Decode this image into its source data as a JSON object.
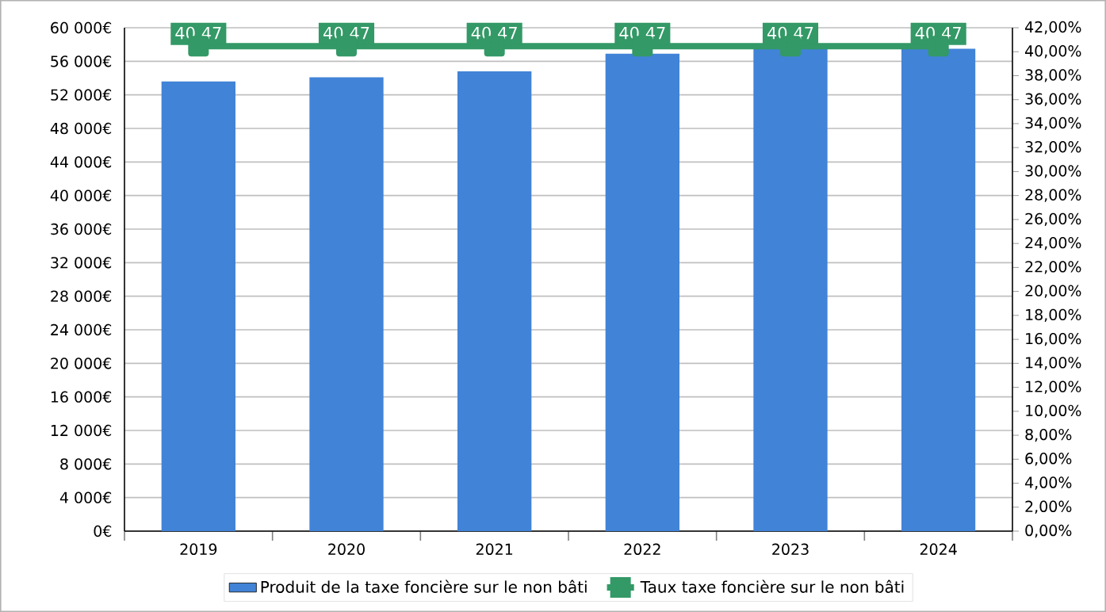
{
  "chart_data": {
    "type": "bar",
    "categories": [
      "2019",
      "2020",
      "2021",
      "2022",
      "2023",
      "2024"
    ],
    "series": [
      {
        "name": "Produit de la taxe foncière sur le non bâti",
        "color": "#4183d7",
        "values": [
          53600,
          54100,
          54800,
          56900,
          57500,
          57500
        ]
      },
      {
        "name": "Taux taxe foncière sur le non bâti",
        "type": "line",
        "axis": "y2",
        "color": "#339966",
        "values": [
          40.47,
          40.47,
          40.47,
          40.47,
          40.47,
          40.47
        ],
        "value_labels": [
          "40,47",
          "40,47",
          "40,47",
          "40,47",
          "40,47",
          "40,47"
        ]
      }
    ],
    "ylim": [
      0,
      60000
    ],
    "yticks": [
      {
        "value": 0,
        "label": "0€"
      },
      {
        "value": 4000,
        "label": "4 000€"
      },
      {
        "value": 8000,
        "label": "8 000€"
      },
      {
        "value": 12000,
        "label": "12 000€"
      },
      {
        "value": 16000,
        "label": "16 000€"
      },
      {
        "value": 20000,
        "label": "20 000€"
      },
      {
        "value": 24000,
        "label": "24 000€"
      },
      {
        "value": 28000,
        "label": "28 000€"
      },
      {
        "value": 32000,
        "label": "32 000€"
      },
      {
        "value": 36000,
        "label": "36 000€"
      },
      {
        "value": 40000,
        "label": "40 000€"
      },
      {
        "value": 44000,
        "label": "44 000€"
      },
      {
        "value": 48000,
        "label": "48 000€"
      },
      {
        "value": 52000,
        "label": "52 000€"
      },
      {
        "value": 56000,
        "label": "56 000€"
      },
      {
        "value": 60000,
        "label": "60 000€"
      }
    ],
    "y2lim": [
      0,
      42
    ],
    "y2ticks": [
      {
        "value": 0,
        "label": "0,00%"
      },
      {
        "value": 2,
        "label": "2,00%"
      },
      {
        "value": 4,
        "label": "4,00%"
      },
      {
        "value": 6,
        "label": "6,00%"
      },
      {
        "value": 8,
        "label": "8,00%"
      },
      {
        "value": 10,
        "label": "10,00%"
      },
      {
        "value": 12,
        "label": "12,00%"
      },
      {
        "value": 14,
        "label": "14,00%"
      },
      {
        "value": 16,
        "label": "16,00%"
      },
      {
        "value": 18,
        "label": "18,00%"
      },
      {
        "value": 20,
        "label": "20,00%"
      },
      {
        "value": 22,
        "label": "22,00%"
      },
      {
        "value": 24,
        "label": "24,00%"
      },
      {
        "value": 26,
        "label": "26,00%"
      },
      {
        "value": 28,
        "label": "28,00%"
      },
      {
        "value": 30,
        "label": "30,00%"
      },
      {
        "value": 32,
        "label": "32,00%"
      },
      {
        "value": 34,
        "label": "34,00%"
      },
      {
        "value": 36,
        "label": "36,00%"
      },
      {
        "value": 38,
        "label": "38,00%"
      },
      {
        "value": 40,
        "label": "40,00%"
      },
      {
        "value": 42,
        "label": "42,00%"
      }
    ],
    "grid": "y",
    "legend": "bottom",
    "marker": "square"
  }
}
